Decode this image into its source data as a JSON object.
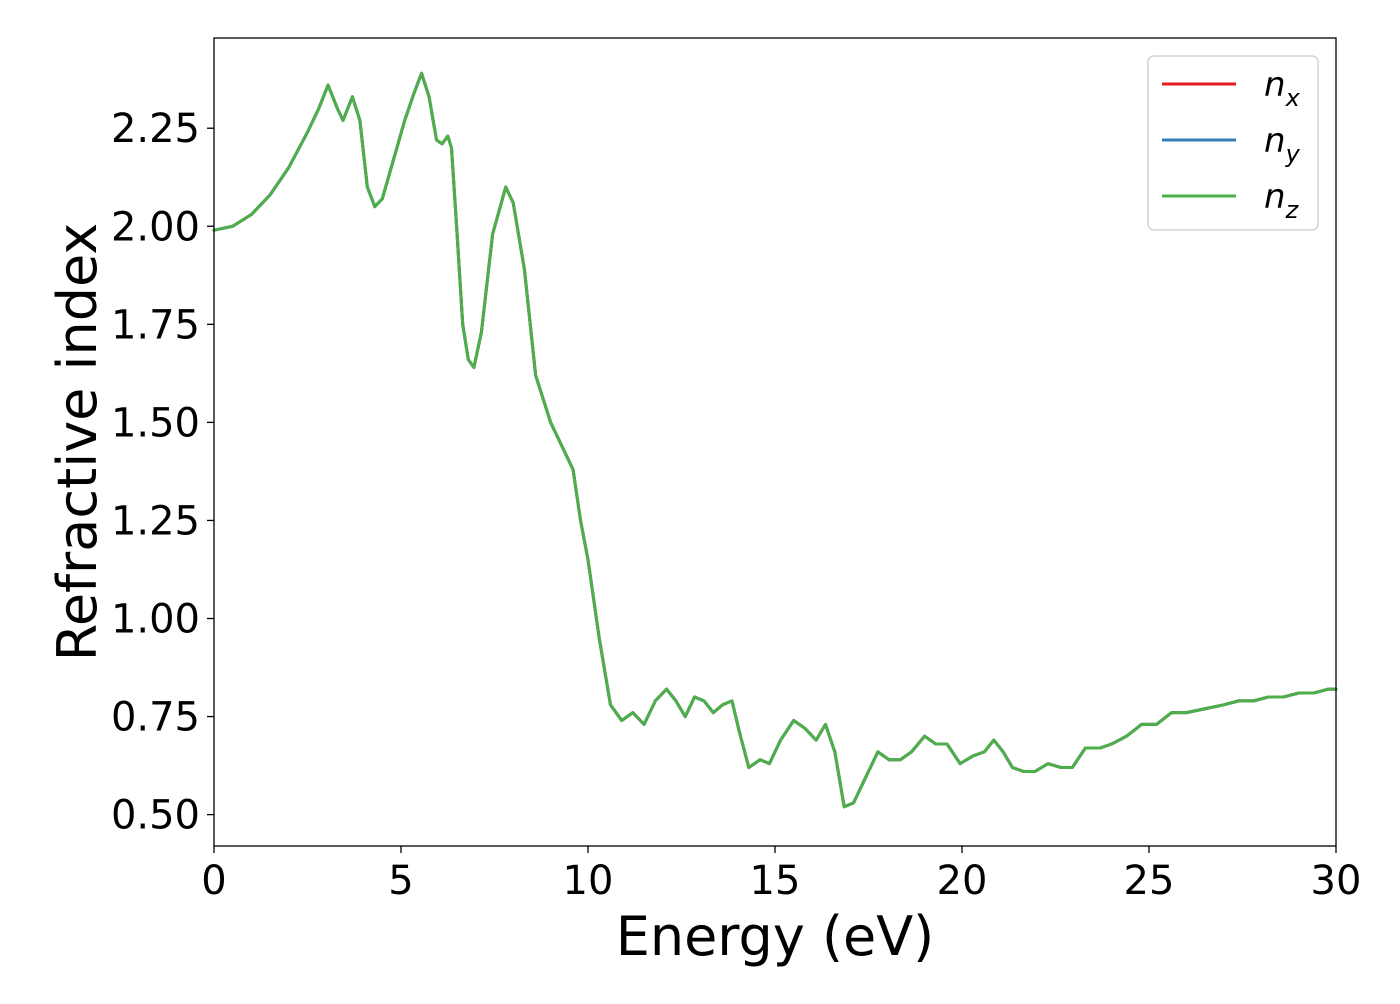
{
  "chart_data": {
    "type": "line",
    "title": "",
    "xlabel": "Energy (eV)",
    "ylabel": "Refractive index",
    "xlim": [
      0,
      30
    ],
    "ylim": [
      0.42,
      2.48
    ],
    "xticks": [
      0,
      5,
      10,
      15,
      20,
      25,
      30
    ],
    "xtick_labels": [
      "0",
      "5",
      "10",
      "15",
      "20",
      "25",
      "30"
    ],
    "yticks": [
      0.5,
      0.75,
      1.0,
      1.25,
      1.5,
      1.75,
      2.0,
      2.25
    ],
    "ytick_labels": [
      "0.50",
      "0.75",
      "1.00",
      "1.25",
      "1.50",
      "1.75",
      "2.00",
      "2.25"
    ],
    "grid": false,
    "legend_position": "top-right",
    "x": [
      0,
      0.5,
      1.0,
      1.5,
      2.0,
      2.5,
      2.8,
      3.05,
      3.3,
      3.45,
      3.7,
      3.9,
      4.1,
      4.3,
      4.5,
      4.8,
      5.1,
      5.35,
      5.55,
      5.75,
      5.95,
      6.1,
      6.25,
      6.35,
      6.5,
      6.65,
      6.8,
      6.95,
      7.15,
      7.45,
      7.8,
      8.0,
      8.3,
      8.6,
      9.0,
      9.3,
      9.6,
      9.8,
      10.0,
      10.3,
      10.6,
      10.9,
      11.2,
      11.5,
      11.8,
      12.1,
      12.35,
      12.6,
      12.85,
      13.1,
      13.35,
      13.6,
      13.85,
      14.05,
      14.3,
      14.6,
      14.85,
      15.15,
      15.5,
      15.8,
      16.1,
      16.35,
      16.6,
      16.85,
      17.1,
      17.4,
      17.75,
      18.05,
      18.35,
      18.65,
      19.0,
      19.3,
      19.6,
      19.95,
      20.3,
      20.6,
      20.85,
      21.1,
      21.35,
      21.65,
      21.95,
      22.3,
      22.65,
      22.95,
      23.3,
      23.7,
      24.0,
      24.4,
      24.8,
      25.2,
      25.6,
      26.0,
      26.5,
      27.0,
      27.4,
      27.8,
      28.2,
      28.6,
      29.0,
      29.4,
      29.8,
      30.0
    ],
    "series": [
      {
        "name": "n_x",
        "color": "#e41a1c",
        "values": [
          1.99,
          2.0,
          2.03,
          2.08,
          2.15,
          2.24,
          2.3,
          2.36,
          2.3,
          2.27,
          2.33,
          2.27,
          2.1,
          2.05,
          2.07,
          2.17,
          2.27,
          2.34,
          2.39,
          2.33,
          2.22,
          2.21,
          2.23,
          2.2,
          1.98,
          1.75,
          1.66,
          1.64,
          1.73,
          1.98,
          2.1,
          2.06,
          1.89,
          1.62,
          1.5,
          1.44,
          1.38,
          1.25,
          1.15,
          0.95,
          0.78,
          0.74,
          0.76,
          0.73,
          0.79,
          0.82,
          0.79,
          0.75,
          0.8,
          0.79,
          0.76,
          0.78,
          0.79,
          0.71,
          0.62,
          0.64,
          0.63,
          0.69,
          0.74,
          0.72,
          0.69,
          0.73,
          0.66,
          0.52,
          0.53,
          0.59,
          0.66,
          0.64,
          0.64,
          0.66,
          0.7,
          0.68,
          0.68,
          0.63,
          0.65,
          0.66,
          0.69,
          0.66,
          0.62,
          0.61,
          0.61,
          0.63,
          0.62,
          0.62,
          0.67,
          0.67,
          0.68,
          0.7,
          0.73,
          0.73,
          0.76,
          0.76,
          0.77,
          0.78,
          0.79,
          0.79,
          0.8,
          0.8,
          0.81,
          0.81,
          0.82,
          0.82
        ]
      },
      {
        "name": "n_y",
        "color": "#377eb8",
        "values": [
          1.99,
          2.0,
          2.03,
          2.08,
          2.15,
          2.24,
          2.3,
          2.36,
          2.3,
          2.27,
          2.33,
          2.27,
          2.1,
          2.05,
          2.07,
          2.17,
          2.27,
          2.34,
          2.39,
          2.33,
          2.22,
          2.21,
          2.23,
          2.2,
          1.98,
          1.75,
          1.66,
          1.64,
          1.73,
          1.98,
          2.1,
          2.06,
          1.89,
          1.62,
          1.5,
          1.44,
          1.38,
          1.25,
          1.15,
          0.95,
          0.78,
          0.74,
          0.76,
          0.73,
          0.79,
          0.82,
          0.79,
          0.75,
          0.8,
          0.79,
          0.76,
          0.78,
          0.79,
          0.71,
          0.62,
          0.64,
          0.63,
          0.69,
          0.74,
          0.72,
          0.69,
          0.73,
          0.66,
          0.52,
          0.53,
          0.59,
          0.66,
          0.64,
          0.64,
          0.66,
          0.7,
          0.68,
          0.68,
          0.63,
          0.65,
          0.66,
          0.69,
          0.66,
          0.62,
          0.61,
          0.61,
          0.63,
          0.62,
          0.62,
          0.67,
          0.67,
          0.68,
          0.7,
          0.73,
          0.73,
          0.76,
          0.76,
          0.77,
          0.78,
          0.79,
          0.79,
          0.8,
          0.8,
          0.81,
          0.81,
          0.82,
          0.82
        ]
      },
      {
        "name": "n_z",
        "color": "#4daf4a",
        "values": [
          1.99,
          2.0,
          2.03,
          2.08,
          2.15,
          2.24,
          2.3,
          2.36,
          2.3,
          2.27,
          2.33,
          2.27,
          2.1,
          2.05,
          2.07,
          2.17,
          2.27,
          2.34,
          2.39,
          2.33,
          2.22,
          2.21,
          2.23,
          2.2,
          1.98,
          1.75,
          1.66,
          1.64,
          1.73,
          1.98,
          2.1,
          2.06,
          1.89,
          1.62,
          1.5,
          1.44,
          1.38,
          1.25,
          1.15,
          0.95,
          0.78,
          0.74,
          0.76,
          0.73,
          0.79,
          0.82,
          0.79,
          0.75,
          0.8,
          0.79,
          0.76,
          0.78,
          0.79,
          0.71,
          0.62,
          0.64,
          0.63,
          0.69,
          0.74,
          0.72,
          0.69,
          0.73,
          0.66,
          0.52,
          0.53,
          0.59,
          0.66,
          0.64,
          0.64,
          0.66,
          0.7,
          0.68,
          0.68,
          0.63,
          0.65,
          0.66,
          0.69,
          0.66,
          0.62,
          0.61,
          0.61,
          0.63,
          0.62,
          0.62,
          0.67,
          0.67,
          0.68,
          0.7,
          0.73,
          0.73,
          0.76,
          0.76,
          0.77,
          0.78,
          0.79,
          0.79,
          0.8,
          0.8,
          0.81,
          0.81,
          0.82,
          0.82
        ]
      }
    ],
    "legend": [
      {
        "main": "n",
        "sub": "x",
        "color": "#e41a1c"
      },
      {
        "main": "n",
        "sub": "y",
        "color": "#377eb8"
      },
      {
        "main": "n",
        "sub": "z",
        "color": "#4daf4a"
      }
    ]
  }
}
